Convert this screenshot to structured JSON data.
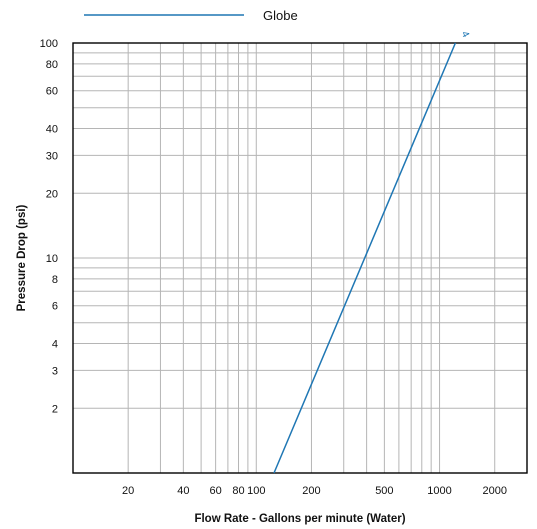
{
  "chart_data": {
    "type": "line",
    "x_scale": "log",
    "y_scale": "log",
    "xlabel": "Flow Rate - Gallons per minute (Water)",
    "ylabel": "Pressure Drop (psi)",
    "xlim": [
      10,
      3000
    ],
    "ylim": [
      1,
      100
    ],
    "x_ticks": [
      20,
      40,
      60,
      80,
      100,
      200,
      500,
      1000,
      2000
    ],
    "x_tick_labels": [
      "20",
      "40",
      "60",
      "80",
      "100",
      "200",
      "500",
      "1000",
      "2000"
    ],
    "y_ticks": [
      2,
      3,
      4,
      6,
      8,
      10,
      20,
      30,
      40,
      60,
      80,
      100
    ],
    "y_tick_labels": [
      "2",
      "3",
      "4",
      "6",
      "8",
      "10",
      "20",
      "30",
      "40",
      "60",
      "80",
      "100"
    ],
    "grid": true,
    "legend_position": "top-center",
    "series": [
      {
        "name": "Globe",
        "color": "#1f77b4",
        "curve_label": "4",
        "x": [
          125,
          1220
        ],
        "y": [
          1,
          100
        ]
      }
    ]
  }
}
